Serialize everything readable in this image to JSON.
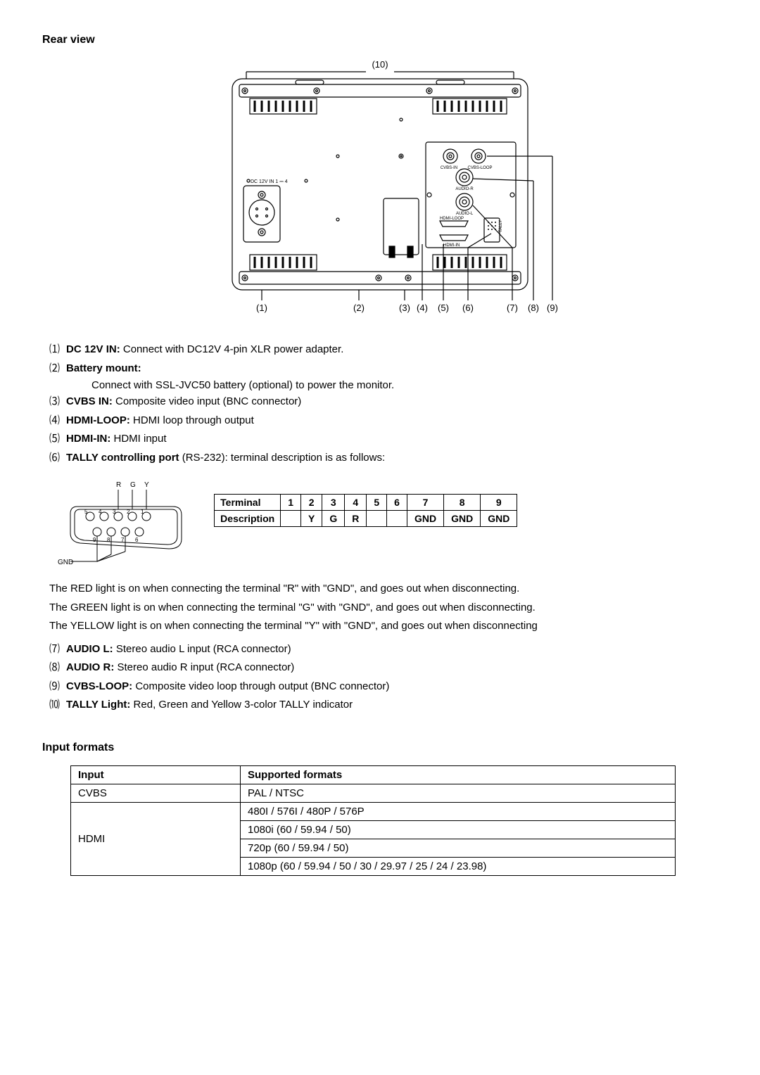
{
  "section1_title": "Rear view",
  "diagram_labels": {
    "top": "(10)",
    "bottom": [
      "(1)",
      "(2)",
      "(3)",
      "(4)",
      "(5)",
      "(6)",
      "(7)",
      "(8)",
      "(9)"
    ],
    "dc_label": "DC 12V IN 1 ⎓ 4",
    "cvbs_in": "CVBS-IN",
    "cvbs_loop": "CVBS-LOOP",
    "audio_r": "AUDIO-R",
    "audio_l": "AUDIO-L",
    "hdmi_loop": "HDMI-LOOP",
    "hdmi_in": "HDMI-IN",
    "tally": "TALLY"
  },
  "items": [
    {
      "n": "⑴",
      "label": "DC 12V IN:",
      "text": " Connect with DC12V 4-pin XLR power adapter."
    },
    {
      "n": "⑵",
      "label": "Battery mount:",
      "text": ""
    },
    {
      "n": "",
      "label": "",
      "text": "Connect with SSL-JVC50 battery (optional) to power the monitor.",
      "indent": true
    },
    {
      "n": "⑶",
      "label": "CVBS IN:",
      "text": " Composite video input (BNC connector)"
    },
    {
      "n": "⑷",
      "label": "HDMI-LOOP:",
      "text": " HDMI loop through output"
    },
    {
      "n": "⑸",
      "label": "HDMI-IN:",
      "text": " HDMI input"
    },
    {
      "n": "⑹",
      "label": "TALLY controlling port",
      "text": " (RS-232): terminal description is as follows:",
      "extrabold": " (RS-232)"
    }
  ],
  "tally_letters": [
    "R",
    "G",
    "Y"
  ],
  "tally_top_nums": [
    "5",
    "4",
    "3",
    "2",
    "1"
  ],
  "tally_bot_nums": [
    "9",
    "8",
    "7",
    "6"
  ],
  "tally_gnd": "GND",
  "term_table": {
    "head": [
      "Terminal",
      "1",
      "2",
      "3",
      "4",
      "5",
      "6",
      "7",
      "8",
      "9"
    ],
    "row": [
      "Description",
      "",
      "Y",
      "G",
      "R",
      "",
      "",
      "GND",
      "GND",
      "GND"
    ]
  },
  "tally_notes": [
    "The RED light is on when connecting the terminal \"R\" with \"GND\", and goes out when disconnecting.",
    "The GREEN light is on when connecting the terminal \"G\" with \"GND\", and goes out when disconnecting.",
    "The YELLOW light is on when connecting the terminal \"Y\" with \"GND\", and goes out when disconnecting"
  ],
  "items2": [
    {
      "n": "⑺",
      "label": "AUDIO L:",
      "text": " Stereo audio L input (RCA connector)"
    },
    {
      "n": "⑻",
      "label": "AUDIO R:",
      "text": " Stereo audio R input (RCA connector)"
    },
    {
      "n": "⑼",
      "label": "CVBS-LOOP:",
      "text": " Composite video loop through output (BNC connector)"
    },
    {
      "n": "⑽",
      "label": "TALLY Light:",
      "text": " Red, Green and Yellow 3-color TALLY indicator"
    }
  ],
  "section2_title": "Input formats",
  "formats": {
    "head": [
      "Input",
      "Supported formats"
    ],
    "rows": [
      {
        "input": "CVBS",
        "fmt": "PAL / NTSC",
        "rowspan": 1
      },
      {
        "input": "HDMI",
        "fmt": "480I / 576I / 480P / 576P",
        "rowspan": 4
      },
      {
        "fmt": "1080i (60 / 59.94 / 50)"
      },
      {
        "fmt": "720p (60 / 59.94 / 50)"
      },
      {
        "fmt": "1080p (60 / 59.94 / 50 / 30 / 29.97 / 25 / 24 / 23.98)"
      }
    ]
  },
  "colors": {
    "stroke": "#000000",
    "fill_bg": "#ffffff"
  }
}
